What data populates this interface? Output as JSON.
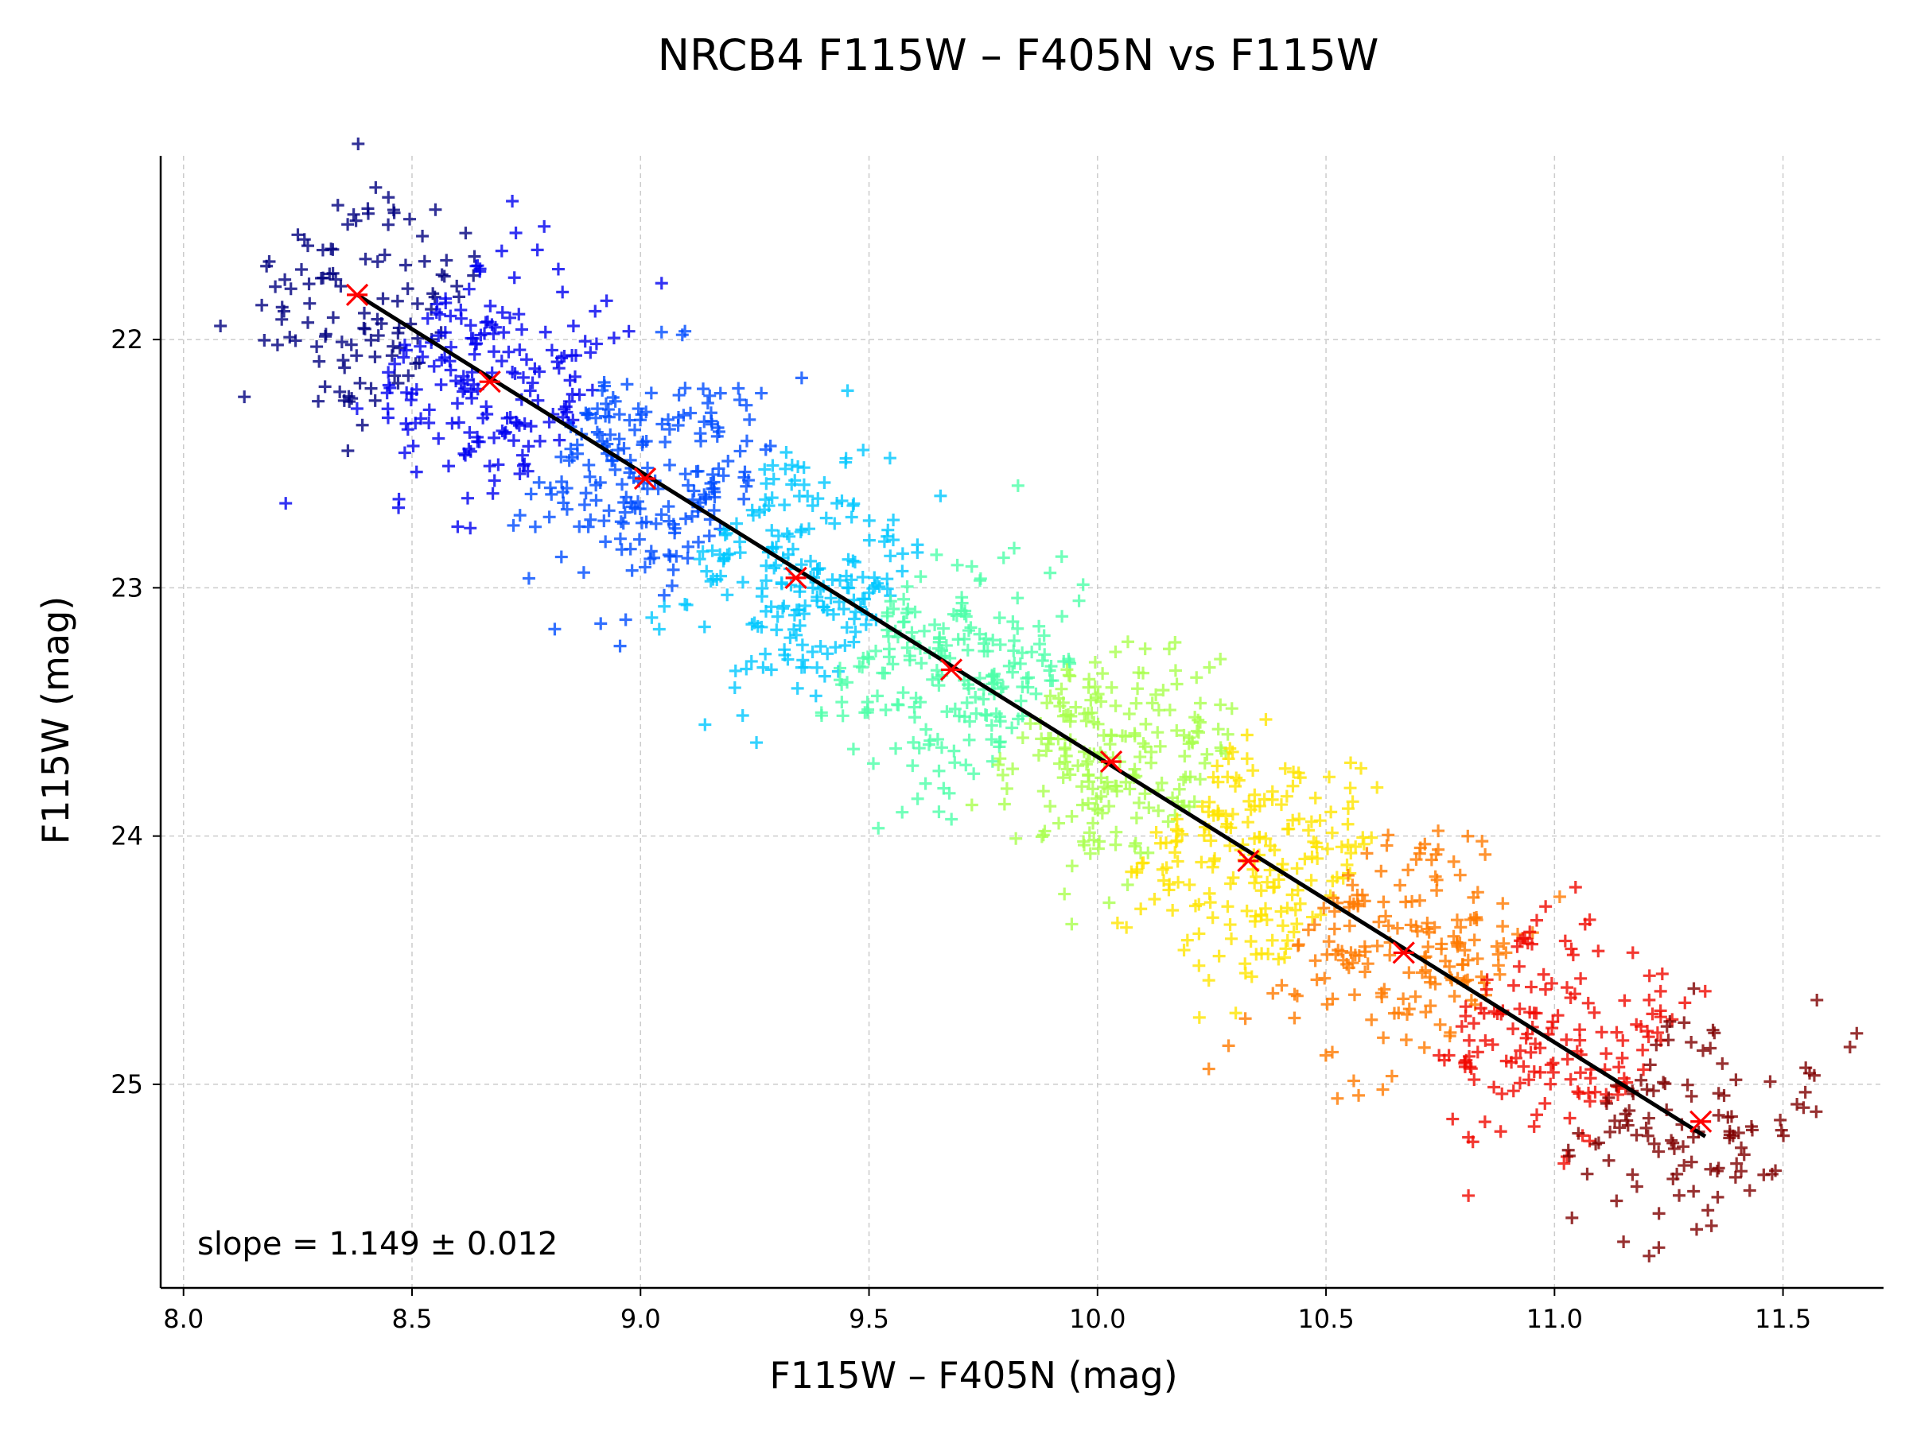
{
  "chart_data": {
    "type": "scatter",
    "title": "NRCB4 F115W – F405N vs F115W",
    "xlabel": "F115W – F405N (mag)",
    "ylabel": "F115W (mag)",
    "xlim": [
      7.95,
      11.72
    ],
    "ylim": [
      25.82,
      21.26
    ],
    "y_inverted": true,
    "xticks": [
      8.0,
      8.5,
      9.0,
      9.5,
      10.0,
      10.5,
      11.0,
      11.5
    ],
    "xtick_labels": [
      "8.0",
      "8.5",
      "9.0",
      "9.5",
      "10.0",
      "10.5",
      "11.0",
      "11.5"
    ],
    "yticks": [
      22,
      23,
      24,
      25
    ],
    "ytick_labels": [
      "22",
      "23",
      "24",
      "25"
    ],
    "grid": true,
    "colormap": "jet",
    "annotation": "slope = 1.149 ± 0.012",
    "scatter_marker": "+",
    "scatter_description_note": "dense cloud of points colored by position along the sequence, roughly centered on the fit line",
    "scatter_bins": [
      {
        "color": "#00007f",
        "center": [
          8.38,
          21.82
        ],
        "count": 110
      },
      {
        "color": "#0000f1",
        "center": [
          8.67,
          22.17
        ],
        "count": 180
      },
      {
        "color": "#004dff",
        "center": [
          9.01,
          22.56
        ],
        "count": 200
      },
      {
        "color": "#00c8ff",
        "center": [
          9.34,
          22.96
        ],
        "count": 200
      },
      {
        "color": "#4effa9",
        "center": [
          9.68,
          23.33
        ],
        "count": 200
      },
      {
        "color": "#a9ff4e",
        "center": [
          10.03,
          23.7
        ],
        "count": 200
      },
      {
        "color": "#ffe500",
        "center": [
          10.33,
          24.1
        ],
        "count": 190
      },
      {
        "color": "#ff7a00",
        "center": [
          10.67,
          24.47
        ],
        "count": 170
      },
      {
        "color": "#f10800",
        "center": [
          11.0,
          24.82
        ],
        "count": 150
      },
      {
        "color": "#7f0000",
        "center": [
          11.32,
          25.15
        ],
        "count": 110
      }
    ],
    "binned_medians": {
      "name": "",
      "color": "#ff0000",
      "marker": "x",
      "x": [
        8.38,
        8.67,
        9.01,
        9.34,
        9.68,
        10.03,
        10.33,
        10.67,
        11.32
      ],
      "y": [
        21.82,
        22.17,
        22.56,
        22.96,
        23.33,
        23.7,
        24.1,
        24.47,
        25.15
      ]
    },
    "fit_line": {
      "color": "#000000",
      "x": [
        8.38,
        11.33
      ],
      "y": [
        21.82,
        25.21
      ]
    }
  }
}
